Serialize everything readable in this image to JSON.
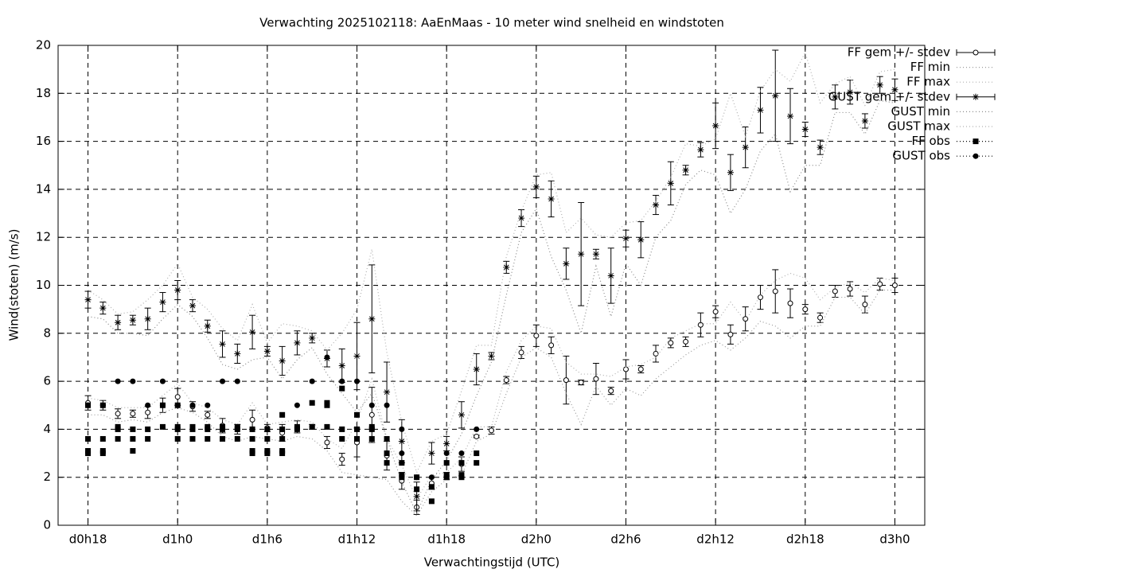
{
  "chart_data": {
    "type": "errorbar",
    "title": "Verwachting 2025102118: AaEnMaas - 10 meter wind snelheid en windstoten",
    "xlabel": "Verwachtingstijd (UTC)",
    "ylabel": "Wind(stoten) (m/s)",
    "xlim": [
      16,
      74
    ],
    "ylim": [
      0,
      20
    ],
    "xticks": [
      {
        "value": 18,
        "label": "d0h18"
      },
      {
        "value": 24,
        "label": "d1h0"
      },
      {
        "value": 30,
        "label": "d1h6"
      },
      {
        "value": 36,
        "label": "d1h12"
      },
      {
        "value": 42,
        "label": "d1h18"
      },
      {
        "value": 48,
        "label": "d2h0"
      },
      {
        "value": 54,
        "label": "d2h6"
      },
      {
        "value": 60,
        "label": "d2h12"
      },
      {
        "value": 66,
        "label": "d2h18"
      },
      {
        "value": 72,
        "label": "d3h0"
      }
    ],
    "yticks": [
      0,
      2,
      4,
      6,
      8,
      10,
      12,
      14,
      16,
      18,
      20
    ],
    "grid": true,
    "legend": "outside-right",
    "x": [
      18,
      19,
      20,
      21,
      22,
      23,
      24,
      25,
      26,
      27,
      28,
      29,
      30,
      31,
      32,
      33,
      34,
      35,
      36,
      37,
      38,
      39,
      40,
      41,
      42,
      43,
      44,
      45,
      46,
      47,
      48,
      49,
      50,
      51,
      52,
      53,
      54,
      55,
      56,
      57,
      58,
      59,
      60,
      61,
      62,
      63,
      64,
      65,
      66,
      67,
      68,
      69,
      70,
      71,
      72
    ],
    "series": [
      {
        "name": "FF gem +/- stdev",
        "color": "#000000",
        "marker": "circle",
        "line": "errorbar",
        "values": [
          5.1,
          5.0,
          4.65,
          4.65,
          4.7,
          5.0,
          5.35,
          4.95,
          4.6,
          4.15,
          4.0,
          4.4,
          4.05,
          3.85,
          4.1,
          4.1,
          3.45,
          2.75,
          3.45,
          4.6,
          2.9,
          1.85,
          0.75,
          1.75,
          2.05,
          2.55,
          3.7,
          3.95,
          6.05,
          7.2,
          7.9,
          7.5,
          6.05,
          5.95,
          6.1,
          5.6,
          6.5,
          6.5,
          7.15,
          7.6,
          7.65,
          8.35,
          8.9,
          7.95,
          8.6,
          9.5,
          9.75,
          9.25,
          9.0,
          8.65,
          9.75,
          9.85,
          9.2,
          10.05,
          10.0
        ],
        "errors": [
          0.3,
          0.2,
          0.2,
          0.15,
          0.25,
          0.3,
          0.35,
          0.2,
          0.15,
          0.3,
          0.2,
          0.4,
          0.15,
          0.35,
          0.25,
          0.1,
          0.25,
          0.25,
          0.6,
          1.15,
          0.6,
          0.35,
          0.3,
          0.25,
          0.15,
          0.3,
          0.05,
          0.15,
          0.15,
          0.25,
          0.45,
          0.35,
          1.0,
          0.1,
          0.65,
          0.15,
          0.4,
          0.15,
          0.35,
          0.2,
          0.2,
          0.5,
          0.25,
          0.4,
          0.5,
          0.5,
          0.9,
          0.6,
          0.2,
          0.2,
          0.25,
          0.3,
          0.35,
          0.25,
          0.3
        ]
      },
      {
        "name": "FF min",
        "color": "#9a9a9a",
        "marker": null,
        "line": "dotted",
        "values": [
          4.6,
          4.6,
          4.3,
          4.4,
          4.3,
          4.7,
          4.9,
          4.7,
          4.3,
          3.7,
          3.5,
          3.7,
          3.6,
          3.5,
          3.7,
          3.6,
          3.1,
          2.2,
          2.1,
          2.0,
          1.9,
          1.0,
          0.4,
          1.4,
          1.9,
          2.1,
          3.5,
          3.8,
          5.5,
          7.0,
          7.4,
          7.0,
          5.5,
          4.2,
          5.8,
          5.0,
          5.7,
          5.4,
          6.1,
          6.6,
          7.1,
          7.5,
          7.7,
          7.3,
          7.8,
          8.5,
          8.3,
          7.8,
          8.3,
          8.3,
          9.5,
          9.5,
          8.8,
          9.8,
          9.8
        ]
      },
      {
        "name": "FF max",
        "color": "#b0b0b0",
        "marker": null,
        "line": "dotted",
        "values": [
          5.3,
          5.2,
          4.9,
          4.9,
          4.9,
          5.4,
          5.9,
          5.1,
          4.9,
          4.4,
          4.2,
          5.1,
          4.2,
          4.3,
          4.4,
          4.3,
          3.6,
          3.2,
          4.3,
          6.1,
          3.6,
          2.5,
          1.1,
          2.1,
          2.2,
          2.8,
          4.1,
          4.1,
          6.4,
          7.7,
          8.3,
          8.2,
          6.8,
          6.3,
          6.3,
          6.2,
          6.6,
          6.7,
          7.0,
          7.8,
          8.1,
          8.4,
          8.4,
          9.3,
          8.5,
          9.6,
          10.2,
          10.5,
          10.3,
          9.4,
          9.9,
          10.1,
          9.7,
          10.3,
          10.2
        ]
      },
      {
        "name": "GUST gem +/- stdev",
        "color": "#000000",
        "marker": "star",
        "line": "errorbar",
        "values": [
          9.4,
          9.05,
          8.45,
          8.55,
          8.6,
          9.3,
          9.8,
          9.15,
          8.3,
          7.55,
          7.15,
          8.05,
          7.25,
          6.85,
          7.6,
          7.8,
          6.95,
          6.65,
          7.05,
          8.6,
          5.55,
          3.5,
          1.2,
          3.0,
          3.4,
          4.6,
          6.5,
          7.05,
          10.75,
          12.8,
          14.1,
          13.6,
          10.9,
          11.3,
          11.3,
          10.4,
          11.95,
          11.9,
          13.35,
          14.25,
          14.8,
          15.65,
          16.65,
          14.7,
          15.75,
          17.3,
          17.9,
          17.05,
          16.5,
          15.75,
          17.85,
          18.05,
          16.85,
          18.35,
          18.15
        ],
        "errors": [
          0.35,
          0.25,
          0.3,
          0.2,
          0.45,
          0.4,
          0.4,
          0.25,
          0.25,
          0.55,
          0.4,
          0.7,
          0.2,
          0.6,
          0.5,
          0.2,
          0.35,
          0.7,
          1.4,
          2.25,
          1.25,
          0.9,
          0.6,
          0.45,
          0.3,
          0.55,
          0.65,
          0.15,
          0.25,
          0.35,
          0.45,
          0.75,
          0.65,
          2.15,
          0.2,
          1.15,
          0.35,
          0.75,
          0.4,
          0.9,
          0.2,
          0.3,
          0.95,
          0.75,
          0.85,
          0.95,
          1.9,
          1.15,
          0.3,
          0.3,
          0.5,
          0.5,
          0.3,
          0.35,
          0.45
        ]
      },
      {
        "name": "GUST min",
        "color": "#8a8a8a",
        "marker": null,
        "line": "dotted",
        "values": [
          8.7,
          8.6,
          8.0,
          8.0,
          7.9,
          8.6,
          9.2,
          8.7,
          7.8,
          6.7,
          6.5,
          6.9,
          7.0,
          6.1,
          6.9,
          7.4,
          6.3,
          5.5,
          4.7,
          5.5,
          3.6,
          1.8,
          0.5,
          1.9,
          2.7,
          3.8,
          5.4,
          6.8,
          9.6,
          12.2,
          13.2,
          11.2,
          9.8,
          8.0,
          10.8,
          8.7,
          10.9,
          10.0,
          12.0,
          12.7,
          14.2,
          14.8,
          14.6,
          13.0,
          14.0,
          15.6,
          16.3,
          13.9,
          15.0,
          15.0,
          17.2,
          17.2,
          16.3,
          17.7,
          17.6
        ]
      },
      {
        "name": "GUST max",
        "color": "#b0b0b0",
        "marker": null,
        "line": "dotted",
        "values": [
          9.8,
          9.4,
          8.8,
          8.9,
          9.4,
          10.0,
          10.9,
          9.5,
          9.0,
          8.2,
          7.7,
          9.2,
          7.6,
          8.4,
          8.3,
          8.1,
          7.3,
          8.0,
          9.0,
          11.5,
          7.2,
          4.3,
          2.2,
          3.5,
          3.8,
          5.6,
          7.5,
          7.5,
          11.2,
          13.1,
          14.6,
          14.7,
          12.2,
          12.8,
          12.1,
          12.0,
          12.6,
          12.7,
          13.5,
          14.5,
          15.9,
          15.8,
          16.1,
          18.0,
          16.2,
          18.1,
          19.0,
          18.5,
          19.7,
          17.6,
          18.4,
          18.7,
          17.5,
          18.9,
          19.0
        ]
      },
      {
        "name": "FF obs",
        "color": "#000000",
        "marker": "square",
        "line": "points",
        "x": [
          18,
          18,
          18,
          18,
          19,
          19,
          19,
          19,
          20,
          20,
          20,
          21,
          21,
          21,
          22,
          22,
          23,
          23,
          24,
          24,
          24,
          24,
          25,
          25,
          25,
          26,
          26,
          26,
          27,
          27,
          27,
          28,
          28,
          28,
          29,
          29,
          29,
          29,
          30,
          30,
          30,
          30,
          31,
          31,
          31,
          31,
          31,
          32,
          32,
          33,
          33,
          34,
          34,
          34,
          35,
          35,
          35,
          36,
          36,
          36,
          37,
          37,
          37,
          38,
          38,
          38,
          39,
          39,
          39,
          40,
          40,
          41,
          41,
          42,
          42,
          42,
          43,
          43,
          43,
          44,
          44
        ],
        "values": [
          3.6,
          3.1,
          3.0,
          5.0,
          3.6,
          3.1,
          3.0,
          5.0,
          3.6,
          4.0,
          4.1,
          3.6,
          4.0,
          3.1,
          3.6,
          4.0,
          4.1,
          5.0,
          3.6,
          4.0,
          4.1,
          5.0,
          3.6,
          4.0,
          4.1,
          3.6,
          4.0,
          4.1,
          3.6,
          4.0,
          4.1,
          3.6,
          4.0,
          4.1,
          3.6,
          3.0,
          3.1,
          4.0,
          3.6,
          3.0,
          3.1,
          4.0,
          3.0,
          3.1,
          3.6,
          4.6,
          4.0,
          4.0,
          4.1,
          5.1,
          4.1,
          5.1,
          5.0,
          4.1,
          5.7,
          4.0,
          3.6,
          4.6,
          4.0,
          3.6,
          4.1,
          3.6,
          4.0,
          3.6,
          3.0,
          2.6,
          2.6,
          2.1,
          2.0,
          2.0,
          1.5,
          1.6,
          1.0,
          2.6,
          2.1,
          2.0,
          2.6,
          2.1,
          2.0,
          3.0,
          2.6
        ]
      },
      {
        "name": "GUST obs",
        "color": "#000000",
        "marker": "dot",
        "line": "points",
        "x": [
          18,
          19,
          20,
          21,
          22,
          23,
          23,
          24,
          25,
          26,
          27,
          27,
          28,
          28,
          29,
          30,
          31,
          32,
          32,
          33,
          34,
          35,
          36,
          37,
          37,
          38,
          39,
          39,
          40,
          41,
          42,
          43,
          44
        ],
        "values": [
          5,
          5,
          6,
          6,
          5,
          6,
          5,
          5,
          5,
          5,
          6,
          4,
          6,
          4,
          4,
          4,
          4,
          5,
          4,
          6,
          7,
          6,
          6,
          5,
          4,
          5,
          4,
          3,
          2,
          2,
          3,
          3,
          4
        ]
      }
    ]
  }
}
